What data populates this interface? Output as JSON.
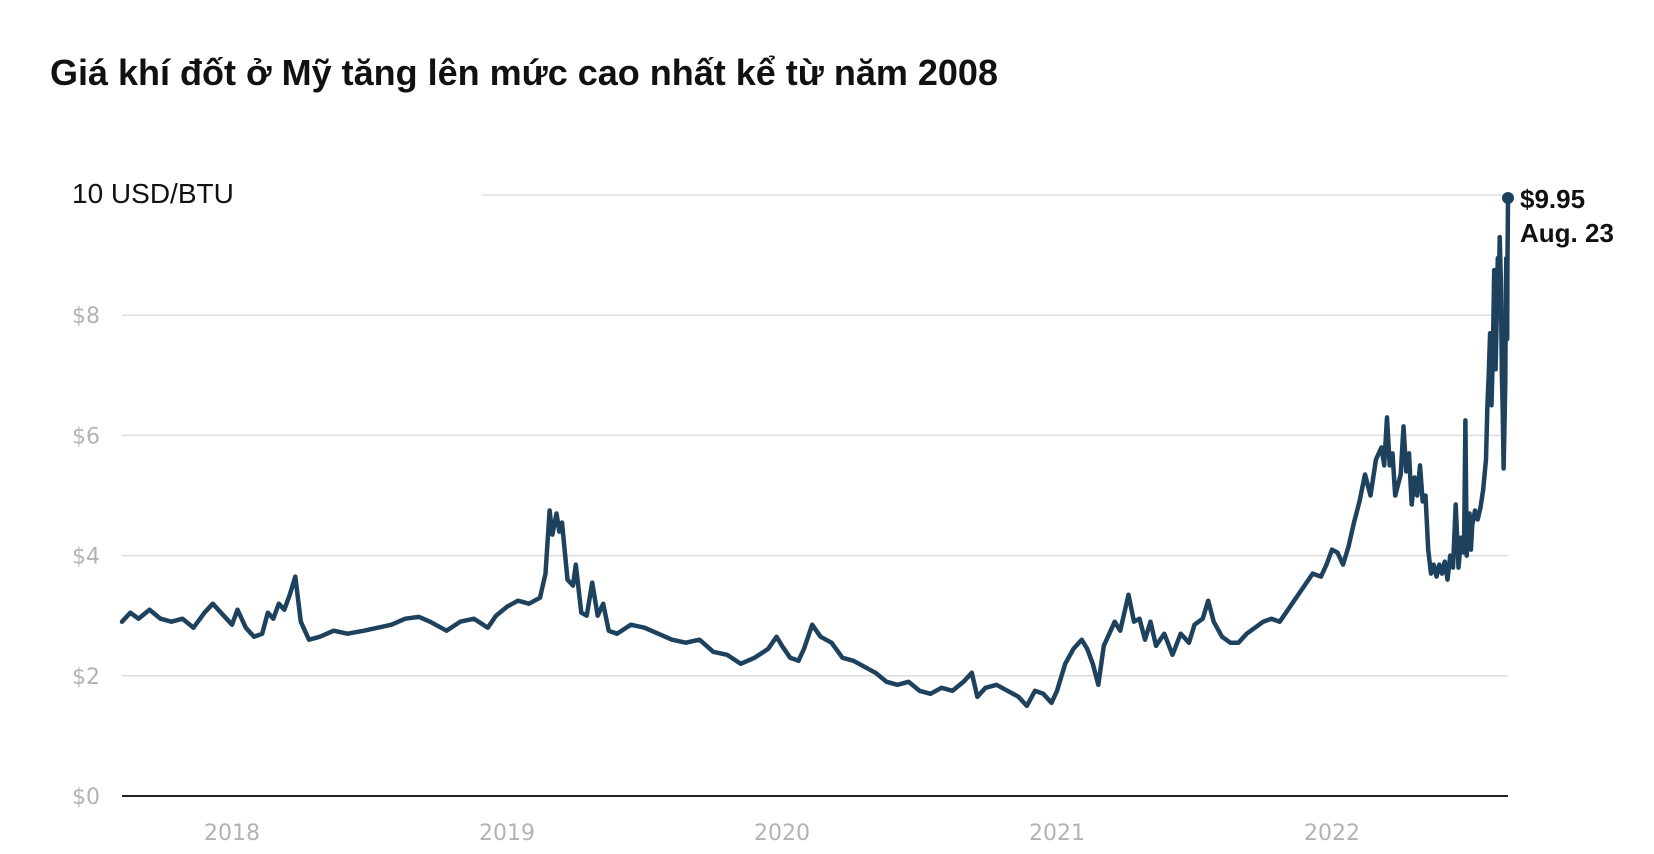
{
  "title": "Giá khí đốt ở Mỹ tăng lên mức cao nhất kể từ năm 2008",
  "colors": {
    "line": "#1e425e",
    "grid": "#dddddd",
    "axis": "#222222",
    "tick": "#b3b3b3"
  },
  "chart_data": {
    "type": "line",
    "title": "Giá khí đốt ở Mỹ tăng lên mức cao nhất kể từ năm 2008",
    "ylabel": "10 USD/BTU",
    "ylim": [
      0,
      10
    ],
    "xlim": [
      2017.6,
      2022.64
    ],
    "grid": true,
    "y_ticks": [
      {
        "value": 0,
        "label": "$0"
      },
      {
        "value": 2,
        "label": "$2"
      },
      {
        "value": 4,
        "label": "$4"
      },
      {
        "value": 6,
        "label": "$6"
      },
      {
        "value": 8,
        "label": "$8"
      }
    ],
    "x_ticks": [
      {
        "value": 2018,
        "label": "2018"
      },
      {
        "value": 2019,
        "label": "2019"
      },
      {
        "value": 2020,
        "label": "2020"
      },
      {
        "value": 2021,
        "label": "2021"
      },
      {
        "value": 2022,
        "label": "2022"
      }
    ],
    "annotation": {
      "value_label": "$9.95",
      "date_label": "Aug. 23",
      "x": 2022.64,
      "y": 9.95
    },
    "series": [
      {
        "points": [
          [
            2017.6,
            2.9
          ],
          [
            2017.63,
            3.05
          ],
          [
            2017.66,
            2.95
          ],
          [
            2017.7,
            3.1
          ],
          [
            2017.74,
            2.95
          ],
          [
            2017.78,
            2.9
          ],
          [
            2017.82,
            2.95
          ],
          [
            2017.86,
            2.8
          ],
          [
            2017.9,
            3.05
          ],
          [
            2017.93,
            3.2
          ],
          [
            2017.96,
            3.05
          ],
          [
            2018.0,
            2.85
          ],
          [
            2018.02,
            3.1
          ],
          [
            2018.05,
            2.8
          ],
          [
            2018.08,
            2.65
          ],
          [
            2018.11,
            2.7
          ],
          [
            2018.13,
            3.05
          ],
          [
            2018.15,
            2.95
          ],
          [
            2018.17,
            3.2
          ],
          [
            2018.19,
            3.1
          ],
          [
            2018.21,
            3.35
          ],
          [
            2018.23,
            3.65
          ],
          [
            2018.25,
            2.9
          ],
          [
            2018.28,
            2.6
          ],
          [
            2018.32,
            2.65
          ],
          [
            2018.37,
            2.75
          ],
          [
            2018.42,
            2.7
          ],
          [
            2018.48,
            2.75
          ],
          [
            2018.53,
            2.8
          ],
          [
            2018.58,
            2.85
          ],
          [
            2018.63,
            2.95
          ],
          [
            2018.68,
            2.98
          ],
          [
            2018.72,
            2.9
          ],
          [
            2018.78,
            2.75
          ],
          [
            2018.83,
            2.9
          ],
          [
            2018.88,
            2.95
          ],
          [
            2018.93,
            2.8
          ],
          [
            2018.96,
            3.0
          ],
          [
            2019.0,
            3.15
          ],
          [
            2019.04,
            3.25
          ],
          [
            2019.08,
            3.2
          ],
          [
            2019.12,
            3.3
          ],
          [
            2019.14,
            3.7
          ],
          [
            2019.155,
            4.75
          ],
          [
            2019.165,
            4.35
          ],
          [
            2019.18,
            4.7
          ],
          [
            2019.19,
            4.4
          ],
          [
            2019.2,
            4.55
          ],
          [
            2019.22,
            3.6
          ],
          [
            2019.24,
            3.5
          ],
          [
            2019.25,
            3.85
          ],
          [
            2019.27,
            3.05
          ],
          [
            2019.29,
            3.0
          ],
          [
            2019.31,
            3.55
          ],
          [
            2019.33,
            3.0
          ],
          [
            2019.35,
            3.2
          ],
          [
            2019.37,
            2.75
          ],
          [
            2019.4,
            2.7
          ],
          [
            2019.45,
            2.85
          ],
          [
            2019.5,
            2.8
          ],
          [
            2019.55,
            2.7
          ],
          [
            2019.6,
            2.6
          ],
          [
            2019.65,
            2.55
          ],
          [
            2019.7,
            2.6
          ],
          [
            2019.75,
            2.4
          ],
          [
            2019.8,
            2.35
          ],
          [
            2019.85,
            2.2
          ],
          [
            2019.9,
            2.3
          ],
          [
            2019.95,
            2.45
          ],
          [
            2019.98,
            2.65
          ],
          [
            2020.0,
            2.5
          ],
          [
            2020.03,
            2.3
          ],
          [
            2020.06,
            2.25
          ],
          [
            2020.08,
            2.45
          ],
          [
            2020.11,
            2.85
          ],
          [
            2020.14,
            2.65
          ],
          [
            2020.18,
            2.55
          ],
          [
            2020.22,
            2.3
          ],
          [
            2020.26,
            2.25
          ],
          [
            2020.3,
            2.15
          ],
          [
            2020.34,
            2.05
          ],
          [
            2020.38,
            1.9
          ],
          [
            2020.42,
            1.85
          ],
          [
            2020.46,
            1.9
          ],
          [
            2020.5,
            1.75
          ],
          [
            2020.54,
            1.7
          ],
          [
            2020.58,
            1.8
          ],
          [
            2020.62,
            1.75
          ],
          [
            2020.66,
            1.9
          ],
          [
            2020.69,
            2.05
          ],
          [
            2020.71,
            1.65
          ],
          [
            2020.74,
            1.8
          ],
          [
            2020.78,
            1.85
          ],
          [
            2020.82,
            1.75
          ],
          [
            2020.86,
            1.65
          ],
          [
            2020.89,
            1.5
          ],
          [
            2020.92,
            1.75
          ],
          [
            2020.95,
            1.7
          ],
          [
            2020.98,
            1.55
          ],
          [
            2021.0,
            1.75
          ],
          [
            2021.03,
            2.2
          ],
          [
            2021.06,
            2.45
          ],
          [
            2021.09,
            2.6
          ],
          [
            2021.11,
            2.45
          ],
          [
            2021.13,
            2.2
          ],
          [
            2021.15,
            1.85
          ],
          [
            2021.17,
            2.5
          ],
          [
            2021.19,
            2.7
          ],
          [
            2021.21,
            2.9
          ],
          [
            2021.23,
            2.75
          ],
          [
            2021.26,
            3.35
          ],
          [
            2021.28,
            2.9
          ],
          [
            2021.3,
            2.95
          ],
          [
            2021.32,
            2.6
          ],
          [
            2021.34,
            2.9
          ],
          [
            2021.36,
            2.5
          ],
          [
            2021.39,
            2.7
          ],
          [
            2021.42,
            2.35
          ],
          [
            2021.45,
            2.7
          ],
          [
            2021.48,
            2.55
          ],
          [
            2021.5,
            2.85
          ],
          [
            2021.53,
            2.95
          ],
          [
            2021.55,
            3.25
          ],
          [
            2021.57,
            2.9
          ],
          [
            2021.6,
            2.65
          ],
          [
            2021.63,
            2.55
          ],
          [
            2021.66,
            2.55
          ],
          [
            2021.69,
            2.7
          ],
          [
            2021.72,
            2.8
          ],
          [
            2021.75,
            2.9
          ],
          [
            2021.78,
            2.95
          ],
          [
            2021.81,
            2.9
          ],
          [
            2021.84,
            3.1
          ],
          [
            2021.87,
            3.3
          ],
          [
            2021.9,
            3.5
          ],
          [
            2021.93,
            3.7
          ],
          [
            2021.96,
            3.65
          ],
          [
            2021.98,
            3.85
          ],
          [
            2022.0,
            4.1
          ],
          [
            2022.02,
            4.05
          ],
          [
            2022.04,
            3.85
          ],
          [
            2022.06,
            4.15
          ],
          [
            2022.08,
            4.55
          ],
          [
            2022.1,
            4.9
          ],
          [
            2022.12,
            5.35
          ],
          [
            2022.14,
            5.0
          ],
          [
            2022.16,
            5.6
          ],
          [
            2022.18,
            5.8
          ],
          [
            2022.19,
            5.5
          ],
          [
            2022.2,
            6.3
          ],
          [
            2022.21,
            5.5
          ],
          [
            2022.22,
            5.7
          ],
          [
            2022.23,
            5.0
          ],
          [
            2022.25,
            5.35
          ],
          [
            2022.26,
            6.15
          ],
          [
            2022.27,
            5.4
          ],
          [
            2022.28,
            5.7
          ],
          [
            2022.29,
            4.85
          ],
          [
            2022.3,
            5.3
          ],
          [
            2022.31,
            5.0
          ],
          [
            2022.32,
            5.5
          ],
          [
            2022.33,
            4.9
          ],
          [
            2022.34,
            5.0
          ],
          [
            2022.35,
            4.1
          ],
          [
            2022.36,
            3.7
          ],
          [
            2022.37,
            3.85
          ],
          [
            2022.38,
            3.65
          ],
          [
            2022.39,
            3.85
          ],
          [
            2022.4,
            3.7
          ],
          [
            2022.41,
            3.9
          ],
          [
            2022.42,
            3.6
          ],
          [
            2022.43,
            4.0
          ],
          [
            2022.44,
            3.8
          ],
          [
            2022.45,
            4.85
          ],
          [
            2022.46,
            3.8
          ],
          [
            2022.47,
            4.3
          ],
          [
            2022.48,
            4.05
          ],
          [
            2022.485,
            6.25
          ],
          [
            2022.49,
            4.0
          ],
          [
            2022.5,
            4.7
          ],
          [
            2022.505,
            4.1
          ],
          [
            2022.51,
            4.5
          ],
          [
            2022.52,
            4.75
          ],
          [
            2022.53,
            4.6
          ],
          [
            2022.54,
            4.8
          ],
          [
            2022.55,
            5.1
          ],
          [
            2022.56,
            5.6
          ],
          [
            2022.565,
            6.5
          ],
          [
            2022.57,
            7.0
          ],
          [
            2022.575,
            7.7
          ],
          [
            2022.58,
            6.5
          ],
          [
            2022.585,
            7.4
          ],
          [
            2022.59,
            8.75
          ],
          [
            2022.595,
            7.1
          ],
          [
            2022.6,
            8.2
          ],
          [
            2022.603,
            8.95
          ],
          [
            2022.606,
            8.2
          ],
          [
            2022.61,
            9.3
          ],
          [
            2022.614,
            8.6
          ],
          [
            2022.618,
            7.0
          ],
          [
            2022.621,
            6.35
          ],
          [
            2022.624,
            5.45
          ],
          [
            2022.627,
            6.1
          ],
          [
            2022.63,
            6.9
          ],
          [
            2022.632,
            8.3
          ],
          [
            2022.634,
            8.95
          ],
          [
            2022.635,
            8.1
          ],
          [
            2022.636,
            8.3
          ],
          [
            2022.637,
            7.6
          ],
          [
            2022.638,
            8.75
          ],
          [
            2022.639,
            9.3
          ],
          [
            2022.64,
            9.95
          ]
        ]
      }
    ]
  }
}
